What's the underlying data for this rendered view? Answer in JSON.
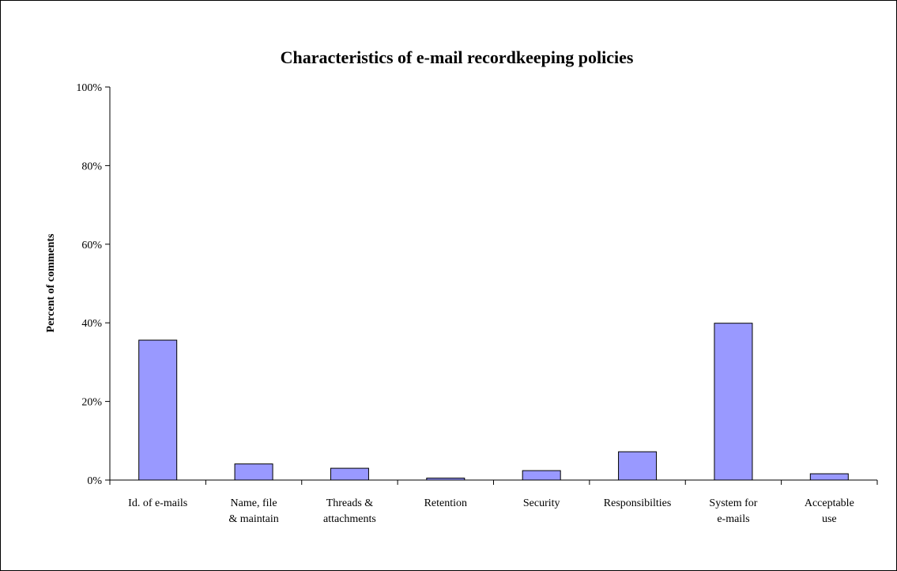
{
  "chart_data": {
    "type": "bar",
    "title": "Characteristics of e-mail recordkeeping policies",
    "xlabel": "",
    "ylabel": "Percent of comments",
    "ylim": [
      0,
      100
    ],
    "yticks": [
      "0%",
      "20%",
      "40%",
      "60%",
      "80%",
      "100%"
    ],
    "categories": [
      [
        "Id. of e-mails"
      ],
      [
        "Name, file",
        "& maintain"
      ],
      [
        "Threads &",
        "attachments"
      ],
      [
        "Retention"
      ],
      [
        "Security"
      ],
      [
        "Responsibilties"
      ],
      [
        "System for",
        "e-mails"
      ],
      [
        "Acceptable",
        "use"
      ]
    ],
    "values": [
      35.6,
      4.1,
      3.0,
      0.5,
      2.4,
      7.2,
      39.9,
      1.6
    ],
    "bar_color": "#9999ff",
    "bar_stroke": "#000000",
    "grid": false,
    "legend": "none"
  }
}
